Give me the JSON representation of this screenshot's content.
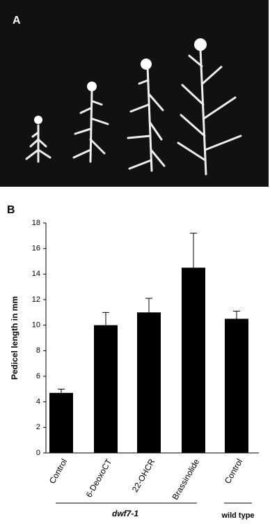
{
  "panel_labels": [
    "A",
    "B"
  ],
  "chart_data": {
    "type": "bar",
    "ylabel": "Pedicel length in mm",
    "categories": [
      "Control",
      "6-DeoxoCT",
      "22-OHCR",
      "Brassinolide",
      "Control"
    ],
    "values": [
      4.7,
      10.0,
      11.0,
      14.5,
      10.5
    ],
    "errors": [
      0.3,
      1.0,
      1.1,
      2.7,
      0.6
    ],
    "color": "#000000",
    "ylim": [
      0,
      18
    ],
    "yticks": [
      0,
      2,
      4,
      6,
      8,
      10,
      12,
      14,
      16,
      18
    ],
    "group_labels": [
      "dwf7-1",
      "wild type"
    ]
  }
}
